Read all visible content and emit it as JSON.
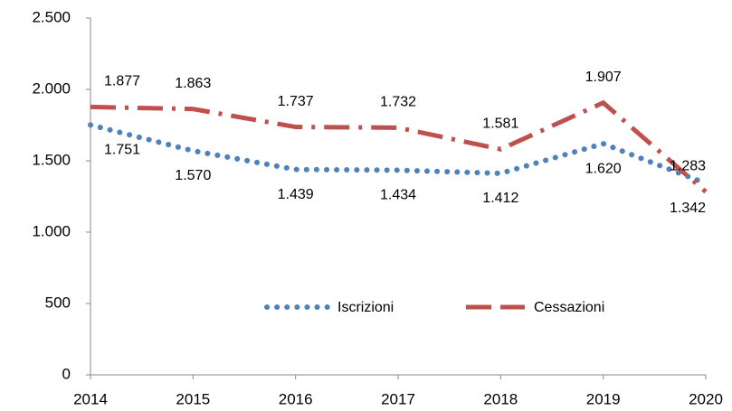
{
  "chart_data": {
    "type": "line",
    "x": [
      2014,
      2015,
      2016,
      2017,
      2018,
      2019,
      2020
    ],
    "xlim": [
      2014,
      2020
    ],
    "xticks": [
      2014,
      2015,
      2016,
      2017,
      2018,
      2019,
      2020
    ],
    "ylim": [
      0,
      2500
    ],
    "yticks": [
      0,
      500,
      {
        "value": 1000,
        "label": "1.000"
      },
      {
        "value": 1500,
        "label": "1.500"
      },
      {
        "value": 2000,
        "label": "2.000"
      },
      {
        "value": 2500,
        "label": "2.500"
      }
    ],
    "legend": "bottom",
    "series": [
      {
        "name": "Iscrizioni",
        "color": "#4f81bd",
        "values": [
          1751,
          1570,
          1439,
          1434,
          1412,
          1620,
          1342
        ],
        "value_labels": [
          "1.751",
          "1.570",
          "1.439",
          "1.434",
          "1.412",
          "1.620",
          "1.342"
        ]
      },
      {
        "name": "Cessazioni",
        "color": "#c0504d",
        "values": [
          1877,
          1863,
          1737,
          1732,
          1581,
          1907,
          1283
        ],
        "value_labels": [
          "1.877",
          "1.863",
          "1.737",
          "1.732",
          "1.581",
          "1.907",
          "1.283"
        ]
      }
    ]
  }
}
